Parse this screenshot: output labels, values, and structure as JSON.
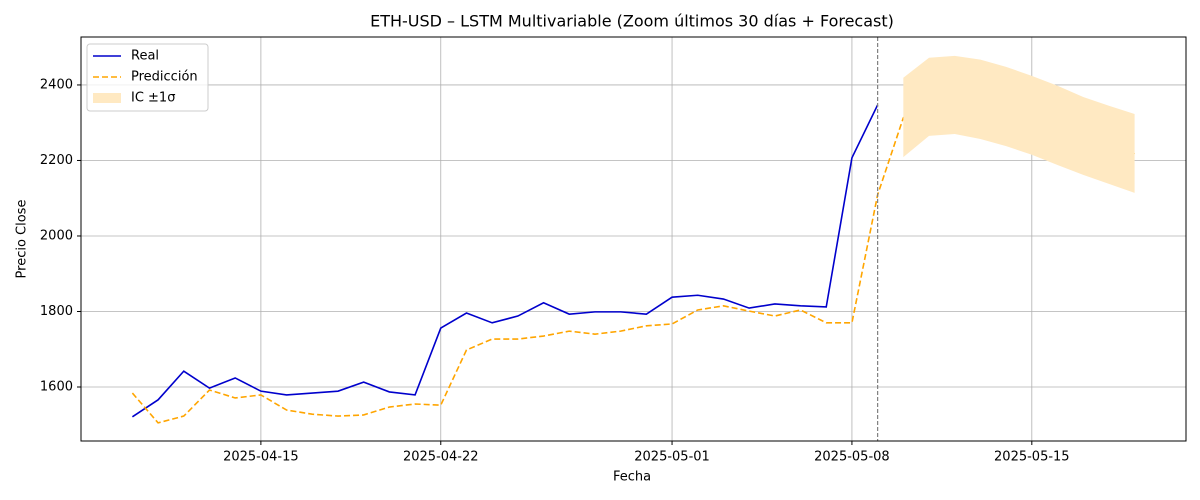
{
  "chart_data": {
    "type": "line",
    "title": "ETH-USD – LSTM Multivariable (Zoom últimos 30 días + Forecast)",
    "x_label": "Fecha",
    "y_label": "Precio Close",
    "x": [
      "2025-04-10",
      "2025-04-11",
      "2025-04-12",
      "2025-04-13",
      "2025-04-14",
      "2025-04-15",
      "2025-04-16",
      "2025-04-17",
      "2025-04-18",
      "2025-04-19",
      "2025-04-20",
      "2025-04-21",
      "2025-04-22",
      "2025-04-23",
      "2025-04-24",
      "2025-04-25",
      "2025-04-26",
      "2025-04-27",
      "2025-04-28",
      "2025-04-29",
      "2025-04-30",
      "2025-05-01",
      "2025-05-02",
      "2025-05-03",
      "2025-05-04",
      "2025-05-05",
      "2025-05-06",
      "2025-05-07",
      "2025-05-08",
      "2025-05-09",
      "2025-05-10",
      "2025-05-11",
      "2025-05-12",
      "2025-05-13",
      "2025-05-14",
      "2025-05-15",
      "2025-05-16",
      "2025-05-17",
      "2025-05-18",
      "2025-05-19"
    ],
    "series": [
      {
        "name": "Real",
        "color": "#0000cc",
        "dash": false,
        "values": [
          1521,
          1566,
          1642,
          1597,
          1624,
          1589,
          1579,
          1584,
          1589,
          1613,
          1587,
          1579,
          1756,
          1796,
          1770,
          1788,
          1823,
          1793,
          1799,
          1799,
          1793,
          1838,
          1843,
          1833,
          1809,
          1820,
          1815,
          1812,
          2207,
          2347,
          null,
          null,
          null,
          null,
          null,
          null,
          null,
          null,
          null,
          null
        ]
      },
      {
        "name": "Predicción",
        "color": "#ffa500",
        "dash": true,
        "values": [
          1584,
          1505,
          1523,
          1592,
          1571,
          1579,
          1539,
          1528,
          1523,
          1526,
          1547,
          1555,
          1552,
          1698,
          1727,
          1727,
          1735,
          1748,
          1740,
          1748,
          1762,
          1767,
          1804,
          1815,
          1801,
          1788,
          1804,
          1770,
          1770,
          2109,
          2313,
          2368,
          2374,
          2363,
          2347,
          2326,
          2302,
          2278,
          2254,
          2217
        ]
      },
      {
        "name": "IC ±1σ",
        "color": "#ffe9c2",
        "band": true,
        "lower": [
          null,
          null,
          null,
          null,
          null,
          null,
          null,
          null,
          null,
          null,
          null,
          null,
          null,
          null,
          null,
          null,
          null,
          null,
          null,
          null,
          null,
          null,
          null,
          null,
          null,
          null,
          null,
          null,
          null,
          null,
          2209,
          2265,
          2270,
          2257,
          2238,
          2215,
          2188,
          2162,
          2138,
          2114
        ],
        "upper": [
          null,
          null,
          null,
          null,
          null,
          null,
          null,
          null,
          null,
          null,
          null,
          null,
          null,
          null,
          null,
          null,
          null,
          null,
          null,
          null,
          null,
          null,
          null,
          null,
          null,
          null,
          null,
          null,
          null,
          null,
          2419,
          2472,
          2477,
          2467,
          2448,
          2424,
          2398,
          2368,
          2345,
          2323
        ]
      }
    ],
    "vline": "2025-05-09",
    "xlim": [
      "2025-04-08",
      "2025-05-21"
    ],
    "xticks": [
      "2025-04-15",
      "2025-04-22",
      "2025-05-01",
      "2025-05-08",
      "2025-05-15"
    ],
    "ylim": [
      1457,
      2527
    ],
    "yticks": [
      1600,
      1800,
      2000,
      2200,
      2400
    ],
    "grid": true,
    "legend": "upper-left"
  }
}
